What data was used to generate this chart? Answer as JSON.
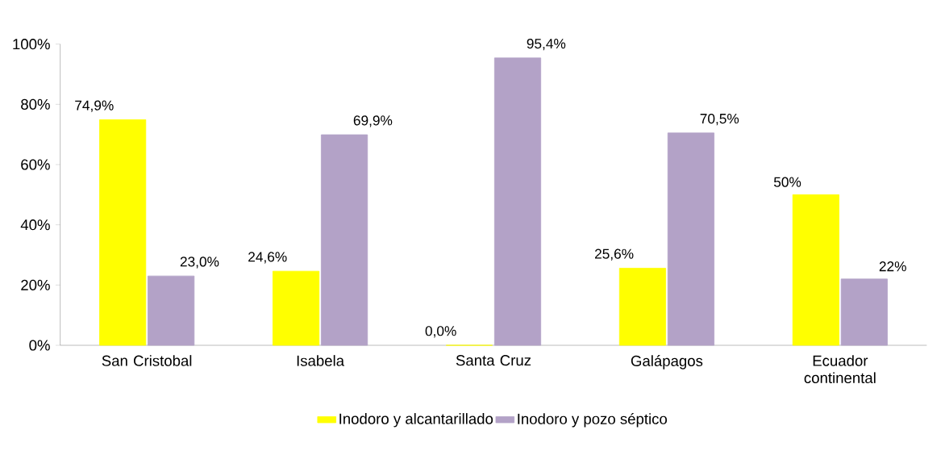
{
  "chart_data": {
    "type": "bar",
    "categories": [
      "San Cristobal",
      "Isabela",
      "Santa Cruz",
      "Galápagos",
      "Ecuador continental"
    ],
    "series": [
      {
        "name": "Inodoro y alcantarillado",
        "color": "#ffff00",
        "values": [
          74.9,
          24.6,
          0.0,
          25.6,
          50
        ],
        "value_labels": [
          "74,9%",
          "24,6%",
          "0,0%",
          "25,6%",
          "50%"
        ]
      },
      {
        "name": "Inodoro y pozo séptico",
        "color": "#b3a2c7",
        "values": [
          23.0,
          69.9,
          95.4,
          70.5,
          22
        ],
        "value_labels": [
          "23,0%",
          "69,9%",
          "95,4%",
          "70,5%",
          "22%"
        ]
      }
    ],
    "ylim": [
      0,
      100
    ],
    "yticks": [
      {
        "value": 0,
        "label": "0%"
      },
      {
        "value": 20,
        "label": "20%"
      },
      {
        "value": 40,
        "label": "40%"
      },
      {
        "value": 60,
        "label": "60%"
      },
      {
        "value": 80,
        "label": "80%"
      },
      {
        "value": 100,
        "label": "100%"
      }
    ],
    "grid": false,
    "legend": "bottom"
  }
}
